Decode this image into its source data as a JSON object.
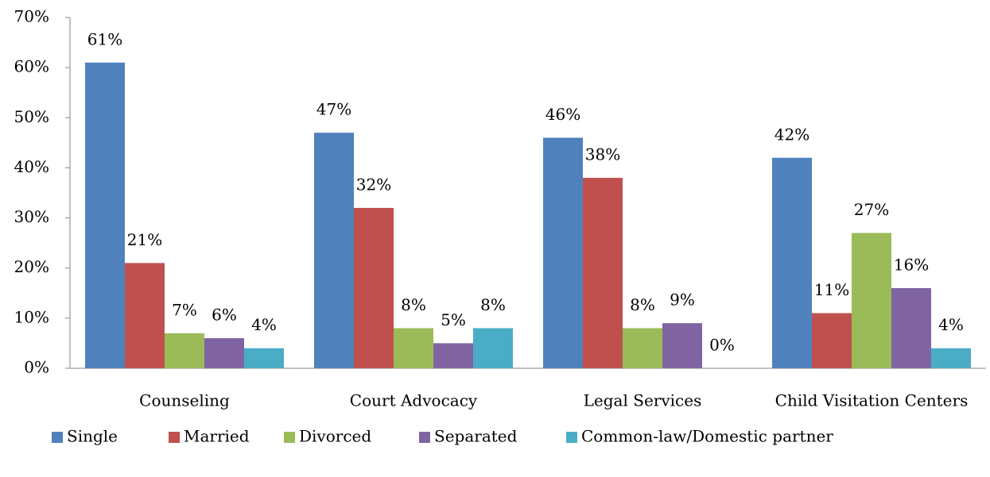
{
  "chart_data": {
    "type": "bar",
    "categories": [
      "Counseling",
      "Court Advocacy",
      "Legal Services",
      "Child Visitation Centers"
    ],
    "series": [
      {
        "name": "Single",
        "color": "#4f81bd",
        "values": [
          61,
          47,
          46,
          42
        ],
        "value_labels": [
          "61%",
          "47%",
          "46%",
          "42%"
        ]
      },
      {
        "name": "Married",
        "color": "#c0504d",
        "values": [
          21,
          32,
          38,
          11
        ],
        "value_labels": [
          "21%",
          "32%",
          "38%",
          "11%"
        ]
      },
      {
        "name": "Divorced",
        "color": "#9bbb59",
        "values": [
          7,
          8,
          8,
          27
        ],
        "value_labels": [
          "7%",
          "8%",
          "8%",
          "27%"
        ]
      },
      {
        "name": "Separated",
        "color": "#8064a2",
        "values": [
          6,
          5,
          9,
          16
        ],
        "value_labels": [
          "6%",
          "5%",
          "9%",
          "16%"
        ]
      },
      {
        "name": "Common-law/Domestic partner",
        "color": "#4bacc6",
        "values": [
          4,
          8,
          0,
          4
        ],
        "value_labels": [
          "4%",
          "8%",
          "0%",
          "4%"
        ]
      }
    ],
    "ylim": [
      0,
      70
    ],
    "yticks": [
      {
        "value": 0,
        "label": "0%"
      },
      {
        "value": 10,
        "label": "10%"
      },
      {
        "value": 20,
        "label": "20%"
      },
      {
        "value": 30,
        "label": "30%"
      },
      {
        "value": 40,
        "label": "40%"
      },
      {
        "value": 50,
        "label": "50%"
      },
      {
        "value": 60,
        "label": "60%"
      },
      {
        "value": 70,
        "label": "70%"
      }
    ],
    "grid": false,
    "legend": "bottom"
  }
}
